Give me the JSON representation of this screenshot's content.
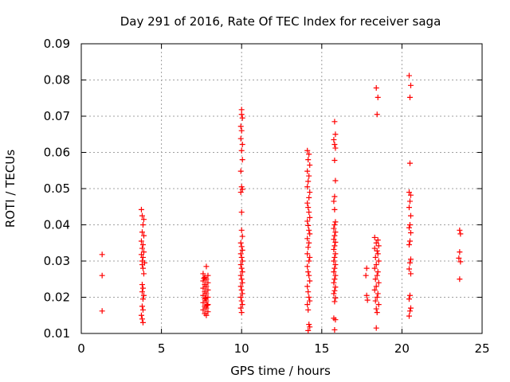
{
  "chart_data": {
    "type": "scatter",
    "title": "Day 291 of 2016, Rate Of TEC Index for receiver saga",
    "xlabel": "GPS time / hours",
    "ylabel": "ROTI / TECUs",
    "xlim": [
      0,
      25
    ],
    "ylim": [
      0.01,
      0.09
    ],
    "xticks": [
      0,
      5,
      10,
      15,
      20,
      25
    ],
    "xtick_labels": [
      "0",
      "5",
      "10",
      "15",
      "20",
      "25"
    ],
    "yticks": [
      0.01,
      0.02,
      0.03,
      0.04,
      0.05,
      0.06,
      0.07,
      0.08,
      0.09
    ],
    "ytick_labels": [
      "0.01",
      "0.02",
      "0.03",
      "0.04",
      "0.05",
      "0.06",
      "0.07",
      "0.08",
      "0.09"
    ],
    "grid": true,
    "marker": "+",
    "color": "#ff0000",
    "series": [
      {
        "name": "saga",
        "points": [
          [
            1.3,
            0.0318
          ],
          [
            1.3,
            0.026
          ],
          [
            1.3,
            0.0162
          ],
          [
            3.75,
            0.0442
          ],
          [
            3.8,
            0.0425
          ],
          [
            3.9,
            0.0415
          ],
          [
            3.85,
            0.04
          ],
          [
            3.8,
            0.038
          ],
          [
            3.9,
            0.037
          ],
          [
            3.75,
            0.0355
          ],
          [
            3.85,
            0.0345
          ],
          [
            3.8,
            0.0335
          ],
          [
            3.9,
            0.0325
          ],
          [
            3.75,
            0.0318
          ],
          [
            3.85,
            0.031
          ],
          [
            3.8,
            0.03
          ],
          [
            3.95,
            0.0295
          ],
          [
            3.8,
            0.029
          ],
          [
            3.85,
            0.028
          ],
          [
            3.9,
            0.0265
          ],
          [
            3.8,
            0.0235
          ],
          [
            3.85,
            0.0225
          ],
          [
            3.8,
            0.0215
          ],
          [
            3.9,
            0.0205
          ],
          [
            3.85,
            0.0195
          ],
          [
            3.8,
            0.0175
          ],
          [
            3.85,
            0.0165
          ],
          [
            3.75,
            0.015
          ],
          [
            3.8,
            0.014
          ],
          [
            3.85,
            0.013
          ],
          [
            7.8,
            0.0285
          ],
          [
            7.6,
            0.0265
          ],
          [
            7.9,
            0.026
          ],
          [
            7.7,
            0.0255
          ],
          [
            7.8,
            0.025
          ],
          [
            7.6,
            0.0245
          ],
          [
            7.9,
            0.024
          ],
          [
            7.7,
            0.0235
          ],
          [
            7.8,
            0.023
          ],
          [
            7.6,
            0.0225
          ],
          [
            7.9,
            0.022
          ],
          [
            7.7,
            0.0215
          ],
          [
            7.8,
            0.021
          ],
          [
            7.6,
            0.0205
          ],
          [
            7.9,
            0.02
          ],
          [
            7.7,
            0.0195
          ],
          [
            7.8,
            0.019
          ],
          [
            7.6,
            0.0185
          ],
          [
            7.9,
            0.018
          ],
          [
            7.7,
            0.0175
          ],
          [
            7.8,
            0.017
          ],
          [
            7.6,
            0.0165
          ],
          [
            7.9,
            0.016
          ],
          [
            7.7,
            0.0155
          ],
          [
            7.8,
            0.015
          ],
          [
            7.65,
            0.0252
          ],
          [
            7.75,
            0.0198
          ],
          [
            7.85,
            0.0178
          ],
          [
            10.0,
            0.0718
          ],
          [
            10.0,
            0.0705
          ],
          [
            10.05,
            0.0695
          ],
          [
            9.95,
            0.0672
          ],
          [
            10.0,
            0.066
          ],
          [
            9.95,
            0.0638
          ],
          [
            10.05,
            0.0622
          ],
          [
            10.0,
            0.0605
          ],
          [
            10.05,
            0.058
          ],
          [
            9.95,
            0.0548
          ],
          [
            10.0,
            0.0505
          ],
          [
            10.05,
            0.0498
          ],
          [
            9.95,
            0.049
          ],
          [
            10.0,
            0.0435
          ],
          [
            10.0,
            0.0385
          ],
          [
            10.05,
            0.0368
          ],
          [
            9.95,
            0.035
          ],
          [
            10.0,
            0.034
          ],
          [
            10.05,
            0.033
          ],
          [
            9.95,
            0.032
          ],
          [
            10.0,
            0.031
          ],
          [
            10.05,
            0.03
          ],
          [
            9.95,
            0.029
          ],
          [
            10.0,
            0.028
          ],
          [
            10.05,
            0.027
          ],
          [
            9.95,
            0.026
          ],
          [
            10.0,
            0.025
          ],
          [
            10.05,
            0.024
          ],
          [
            9.95,
            0.023
          ],
          [
            10.0,
            0.022
          ],
          [
            10.05,
            0.021
          ],
          [
            9.95,
            0.02
          ],
          [
            10.0,
            0.019
          ],
          [
            10.05,
            0.018
          ],
          [
            9.95,
            0.017
          ],
          [
            10.0,
            0.0158
          ],
          [
            14.1,
            0.0605
          ],
          [
            14.2,
            0.0595
          ],
          [
            14.15,
            0.058
          ],
          [
            14.25,
            0.0565
          ],
          [
            14.1,
            0.0548
          ],
          [
            14.2,
            0.0535
          ],
          [
            14.15,
            0.052
          ],
          [
            14.1,
            0.0505
          ],
          [
            14.25,
            0.049
          ],
          [
            14.2,
            0.0475
          ],
          [
            14.1,
            0.046
          ],
          [
            14.15,
            0.0448
          ],
          [
            14.2,
            0.0435
          ],
          [
            14.25,
            0.042
          ],
          [
            14.1,
            0.041
          ],
          [
            14.15,
            0.0398
          ],
          [
            14.2,
            0.0385
          ],
          [
            14.25,
            0.0375
          ],
          [
            14.1,
            0.0362
          ],
          [
            14.2,
            0.035
          ],
          [
            14.15,
            0.0338
          ],
          [
            14.1,
            0.032
          ],
          [
            14.25,
            0.031
          ],
          [
            14.2,
            0.03
          ],
          [
            14.1,
            0.0285
          ],
          [
            14.15,
            0.027
          ],
          [
            14.2,
            0.026
          ],
          [
            14.25,
            0.0245
          ],
          [
            14.1,
            0.023
          ],
          [
            14.15,
            0.0215
          ],
          [
            14.2,
            0.02
          ],
          [
            14.25,
            0.019
          ],
          [
            14.1,
            0.018
          ],
          [
            14.15,
            0.0165
          ],
          [
            14.2,
            0.0125
          ],
          [
            14.25,
            0.0118
          ],
          [
            14.15,
            0.0108
          ],
          [
            15.8,
            0.0685
          ],
          [
            15.85,
            0.065
          ],
          [
            15.75,
            0.0635
          ],
          [
            15.8,
            0.0622
          ],
          [
            15.85,
            0.0612
          ],
          [
            15.8,
            0.0578
          ],
          [
            15.85,
            0.0522
          ],
          [
            15.8,
            0.0478
          ],
          [
            15.75,
            0.0465
          ],
          [
            15.8,
            0.0442
          ],
          [
            15.85,
            0.0408
          ],
          [
            15.8,
            0.04
          ],
          [
            15.75,
            0.039
          ],
          [
            15.85,
            0.038
          ],
          [
            15.8,
            0.037
          ],
          [
            15.75,
            0.036
          ],
          [
            15.85,
            0.0352
          ],
          [
            15.8,
            0.0342
          ],
          [
            15.75,
            0.0332
          ],
          [
            15.85,
            0.032
          ],
          [
            15.8,
            0.031
          ],
          [
            15.75,
            0.03
          ],
          [
            15.85,
            0.029
          ],
          [
            15.8,
            0.028
          ],
          [
            15.75,
            0.027
          ],
          [
            15.85,
            0.026
          ],
          [
            15.8,
            0.025
          ],
          [
            15.75,
            0.024
          ],
          [
            15.85,
            0.0228
          ],
          [
            15.8,
            0.0218
          ],
          [
            15.75,
            0.021
          ],
          [
            15.85,
            0.0198
          ],
          [
            15.8,
            0.0188
          ],
          [
            15.75,
            0.0142
          ],
          [
            15.85,
            0.0138
          ],
          [
            15.8,
            0.011
          ],
          [
            17.8,
            0.028
          ],
          [
            17.75,
            0.026
          ],
          [
            17.8,
            0.0205
          ],
          [
            17.85,
            0.0192
          ],
          [
            18.4,
            0.0778
          ],
          [
            18.5,
            0.0752
          ],
          [
            18.45,
            0.0705
          ],
          [
            18.3,
            0.0365
          ],
          [
            18.5,
            0.0358
          ],
          [
            18.4,
            0.035
          ],
          [
            18.55,
            0.0342
          ],
          [
            18.3,
            0.0335
          ],
          [
            18.45,
            0.0328
          ],
          [
            18.5,
            0.032
          ],
          [
            18.35,
            0.031
          ],
          [
            18.55,
            0.03
          ],
          [
            18.4,
            0.029
          ],
          [
            18.3,
            0.028
          ],
          [
            18.5,
            0.027
          ],
          [
            18.45,
            0.026
          ],
          [
            18.35,
            0.025
          ],
          [
            18.55,
            0.024
          ],
          [
            18.4,
            0.023
          ],
          [
            18.3,
            0.022
          ],
          [
            18.5,
            0.021
          ],
          [
            18.45,
            0.02
          ],
          [
            18.35,
            0.019
          ],
          [
            18.55,
            0.018
          ],
          [
            18.4,
            0.0168
          ],
          [
            18.45,
            0.0158
          ],
          [
            18.4,
            0.0115
          ],
          [
            20.45,
            0.0812
          ],
          [
            20.55,
            0.0785
          ],
          [
            20.5,
            0.0752
          ],
          [
            20.5,
            0.057
          ],
          [
            20.45,
            0.049
          ],
          [
            20.55,
            0.0482
          ],
          [
            20.5,
            0.0465
          ],
          [
            20.45,
            0.0448
          ],
          [
            20.55,
            0.0425
          ],
          [
            20.5,
            0.04
          ],
          [
            20.45,
            0.0392
          ],
          [
            20.55,
            0.0378
          ],
          [
            20.5,
            0.0355
          ],
          [
            20.45,
            0.0345
          ],
          [
            20.55,
            0.0305
          ],
          [
            20.5,
            0.0295
          ],
          [
            20.45,
            0.0278
          ],
          [
            20.55,
            0.0265
          ],
          [
            20.5,
            0.0205
          ],
          [
            20.45,
            0.0195
          ],
          [
            20.55,
            0.017
          ],
          [
            20.5,
            0.0162
          ],
          [
            20.45,
            0.0148
          ],
          [
            23.6,
            0.0385
          ],
          [
            23.65,
            0.0375
          ],
          [
            23.6,
            0.0325
          ],
          [
            23.55,
            0.0308
          ],
          [
            23.65,
            0.0298
          ],
          [
            23.6,
            0.025
          ]
        ]
      }
    ]
  }
}
